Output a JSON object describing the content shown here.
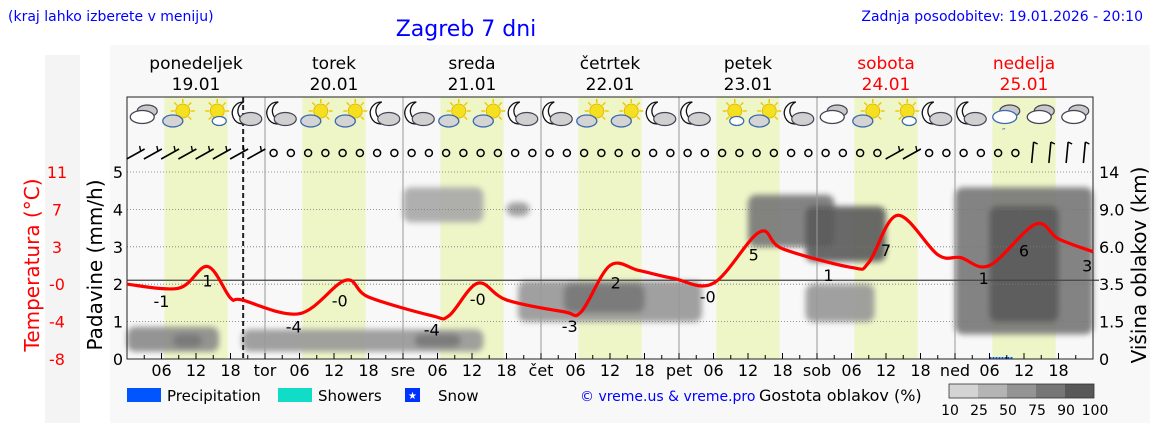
{
  "header": {
    "hint": "(kraj lahko izberete v meniju)",
    "title": "Zagreb 7 dni",
    "updated": "Zadnja posodobitev: 19.01.2026 - 20:10"
  },
  "days": [
    {
      "name": "ponedeljek",
      "date": "19.01",
      "weekend": false
    },
    {
      "name": "torek",
      "date": "20.01",
      "weekend": false
    },
    {
      "name": "sreda",
      "date": "21.01",
      "weekend": false
    },
    {
      "name": "četrtek",
      "date": "22.01",
      "weekend": false
    },
    {
      "name": "petek",
      "date": "23.01",
      "weekend": false
    },
    {
      "name": "sobota",
      "date": "24.01",
      "weekend": true
    },
    {
      "name": "nedelja",
      "date": "25.01",
      "weekend": true
    }
  ],
  "legend": {
    "precipitation": "Precipitation",
    "showers": "Showers",
    "snow": "Snow",
    "copyright": "© vreme.us & vreme.pro",
    "cloud_density_title": "Gostota oblakov (%)",
    "cloud_density_steps": [
      "10",
      "25",
      "50",
      "75",
      "90",
      "100"
    ]
  },
  "colors": {
    "temperature": "#ff0000",
    "precipitation": "#0055ff",
    "showers": "#10dcc8",
    "snow": "#0033ff",
    "daylight": "#eef6c8",
    "background": "#f8f8f8",
    "weekend": "#ff0000",
    "link": "#0000ff"
  },
  "chart_data": {
    "type": "line",
    "title": "Zagreb 7 dni",
    "x_unit": "hours from Monday 19.01 00:00",
    "x_tick_labels": [
      "06",
      "12",
      "18",
      "tor",
      "06",
      "12",
      "18",
      "sre",
      "06",
      "12",
      "18",
      "čet",
      "06",
      "12",
      "18",
      "pet",
      "06",
      "12",
      "18",
      "sob",
      "06",
      "12",
      "18",
      "ned",
      "06",
      "12",
      "18"
    ],
    "now_marker_hour": 20.2,
    "left_axis_temperature": {
      "label": "Temperatura (°C)",
      "ticks": [
        "11",
        "7",
        "3",
        "-0",
        "-4",
        "-8"
      ],
      "range": [
        -8,
        11
      ]
    },
    "left_axis_precipitation": {
      "label": "Padavine (mm/h)",
      "ticks": [
        "5",
        "4",
        "3",
        "2",
        "1",
        "0"
      ],
      "range": [
        0,
        5
      ]
    },
    "right_axis_cloud_height": {
      "label": "Višina oblakov (km)",
      "ticks": [
        "14",
        "9.0",
        "6.0",
        "3.5",
        "1.5",
        "0"
      ]
    },
    "zero_line_celsius": 0,
    "grid": true,
    "daylight_hours": [
      6.5,
      17.5
    ],
    "temperature_series": {
      "hours": [
        0,
        9,
        14,
        18,
        20,
        30,
        38,
        42,
        53,
        56,
        61,
        66,
        76,
        79,
        84,
        89,
        95,
        102,
        110,
        114,
        126,
        129,
        134,
        141,
        145,
        150,
        158,
        162,
        168
      ],
      "values": [
        -0.4,
        -0.8,
        1.4,
        -1.8,
        -2.0,
        -3.4,
        0.0,
        -1.7,
        -3.6,
        -3.6,
        -0.3,
        -2.0,
        -3.2,
        -3.2,
        1.5,
        1.0,
        0.2,
        -0.3,
        4.9,
        3.2,
        1.3,
        1.8,
        6.6,
        2.6,
        2.3,
        1.5,
        5.7,
        4.2,
        2.9
      ]
    },
    "temperature_labels": [
      {
        "hour": 6,
        "text": "-1"
      },
      {
        "hour": 14,
        "text": "1"
      },
      {
        "hour": 29,
        "text": "-4"
      },
      {
        "hour": 37,
        "text": "-0"
      },
      {
        "hour": 53,
        "text": "-4"
      },
      {
        "hour": 61,
        "text": "-0"
      },
      {
        "hour": 77,
        "text": "-3"
      },
      {
        "hour": 85,
        "text": "2"
      },
      {
        "hour": 101,
        "text": "-0"
      },
      {
        "hour": 109,
        "text": "5"
      },
      {
        "hour": 122,
        "text": "1"
      },
      {
        "hour": 132,
        "text": "7"
      },
      {
        "hour": 149,
        "text": "1"
      },
      {
        "hour": 156,
        "text": "6"
      },
      {
        "hour": 167,
        "text": "3"
      }
    ],
    "cloud_density": [
      {
        "from": 0,
        "to": 16,
        "km_low": 0.3,
        "km_high": 1.3,
        "density": 60
      },
      {
        "from": 8,
        "to": 13,
        "km_low": 0.5,
        "km_high": 1.0,
        "density": 75
      },
      {
        "from": 20,
        "to": 62,
        "km_low": 0.3,
        "km_high": 1.2,
        "density": 50
      },
      {
        "from": 50,
        "to": 58,
        "km_low": 0.5,
        "km_high": 1.0,
        "density": 75
      },
      {
        "from": 48,
        "to": 62,
        "km_low": 8,
        "km_high": 12,
        "density": 40
      },
      {
        "from": 66,
        "to": 70,
        "km_low": 8.5,
        "km_high": 10,
        "density": 50
      },
      {
        "from": 68,
        "to": 100,
        "km_low": 1.5,
        "km_high": 3.7,
        "density": 50
      },
      {
        "from": 76,
        "to": 90,
        "km_low": 2.0,
        "km_high": 3.5,
        "density": 75
      },
      {
        "from": 108,
        "to": 123,
        "km_low": 6,
        "km_high": 11,
        "density": 75
      },
      {
        "from": 118,
        "to": 132,
        "km_low": 5,
        "km_high": 9.5,
        "density": 90
      },
      {
        "from": 118,
        "to": 130,
        "km_low": 1.5,
        "km_high": 3.5,
        "density": 50
      },
      {
        "from": 144,
        "to": 168,
        "km_low": 1.0,
        "km_high": 12,
        "density": 75
      },
      {
        "from": 150,
        "to": 162,
        "km_low": 1.5,
        "km_high": 9.5,
        "density": 90
      }
    ],
    "precipitation": [
      {
        "hour": 152,
        "value": 0.05,
        "type": "precipitation"
      }
    ],
    "weather_icons": [
      "overcast",
      "sun-cloud",
      "sun-small-cloud",
      "moon-cloud",
      "moon-cloud",
      "sun-cloud",
      "sun-cloud",
      "moon-cloud",
      "moon-cloud",
      "sun-cloud",
      "sun-cloud",
      "moon-cloud",
      "moon-cloud",
      "sun-cloud",
      "sun-cloud",
      "moon-cloud",
      "moon-cloud",
      "sun-small-cloud",
      "sun-cloud",
      "moon-cloud",
      "overcast",
      "sun-cloud",
      "sun-small-cloud",
      "moon-cloud",
      "moon-cloud",
      "overcast-drizzle",
      "overcast",
      "overcast"
    ],
    "wind": [
      "sw",
      "sw",
      "sw",
      "sw",
      "sw",
      "sw",
      "sw",
      "sw",
      "calm",
      "calm",
      "calm",
      "calm",
      "calm",
      "calm",
      "calm",
      "calm",
      "calm",
      "calm",
      "calm",
      "calm",
      "calm",
      "calm",
      "calm",
      "calm",
      "calm",
      "calm",
      "calm",
      "calm",
      "calm",
      "calm",
      "calm",
      "calm",
      "calm",
      "calm",
      "calm",
      "calm",
      "calm",
      "calm",
      "calm",
      "calm",
      "calm",
      "calm",
      "calm",
      "calm",
      "sw",
      "sw",
      "calm",
      "calm",
      "calm",
      "calm",
      "calm",
      "calm",
      "n",
      "n",
      "n",
      "n"
    ]
  }
}
